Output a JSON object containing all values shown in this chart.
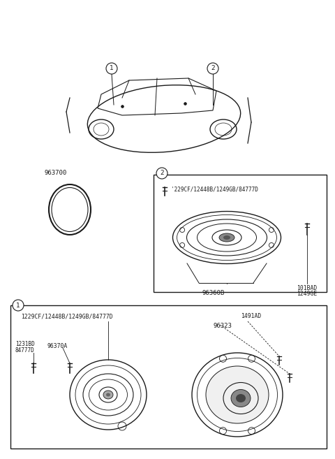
{
  "bg_color": "#ffffff",
  "lc": "#1a1a1a",
  "tc": "#1a1a1a",
  "fs": 6.5,
  "fs_sm": 5.8,
  "car_label1": "963700",
  "box2_screw_label": "'229CF/12448B/1249GB/84777D",
  "box2_part1": "96360B",
  "box2_part2": "101BAD",
  "box2_part3": "1249GE",
  "box1_top_label": "1229CF/12448B/1249GB/84777D",
  "box1_part1": "1491AD",
  "box1_part2": "96323",
  "box1_left1": "1231BD",
  "box1_left2": "84777D",
  "box1_left3": "96370A"
}
